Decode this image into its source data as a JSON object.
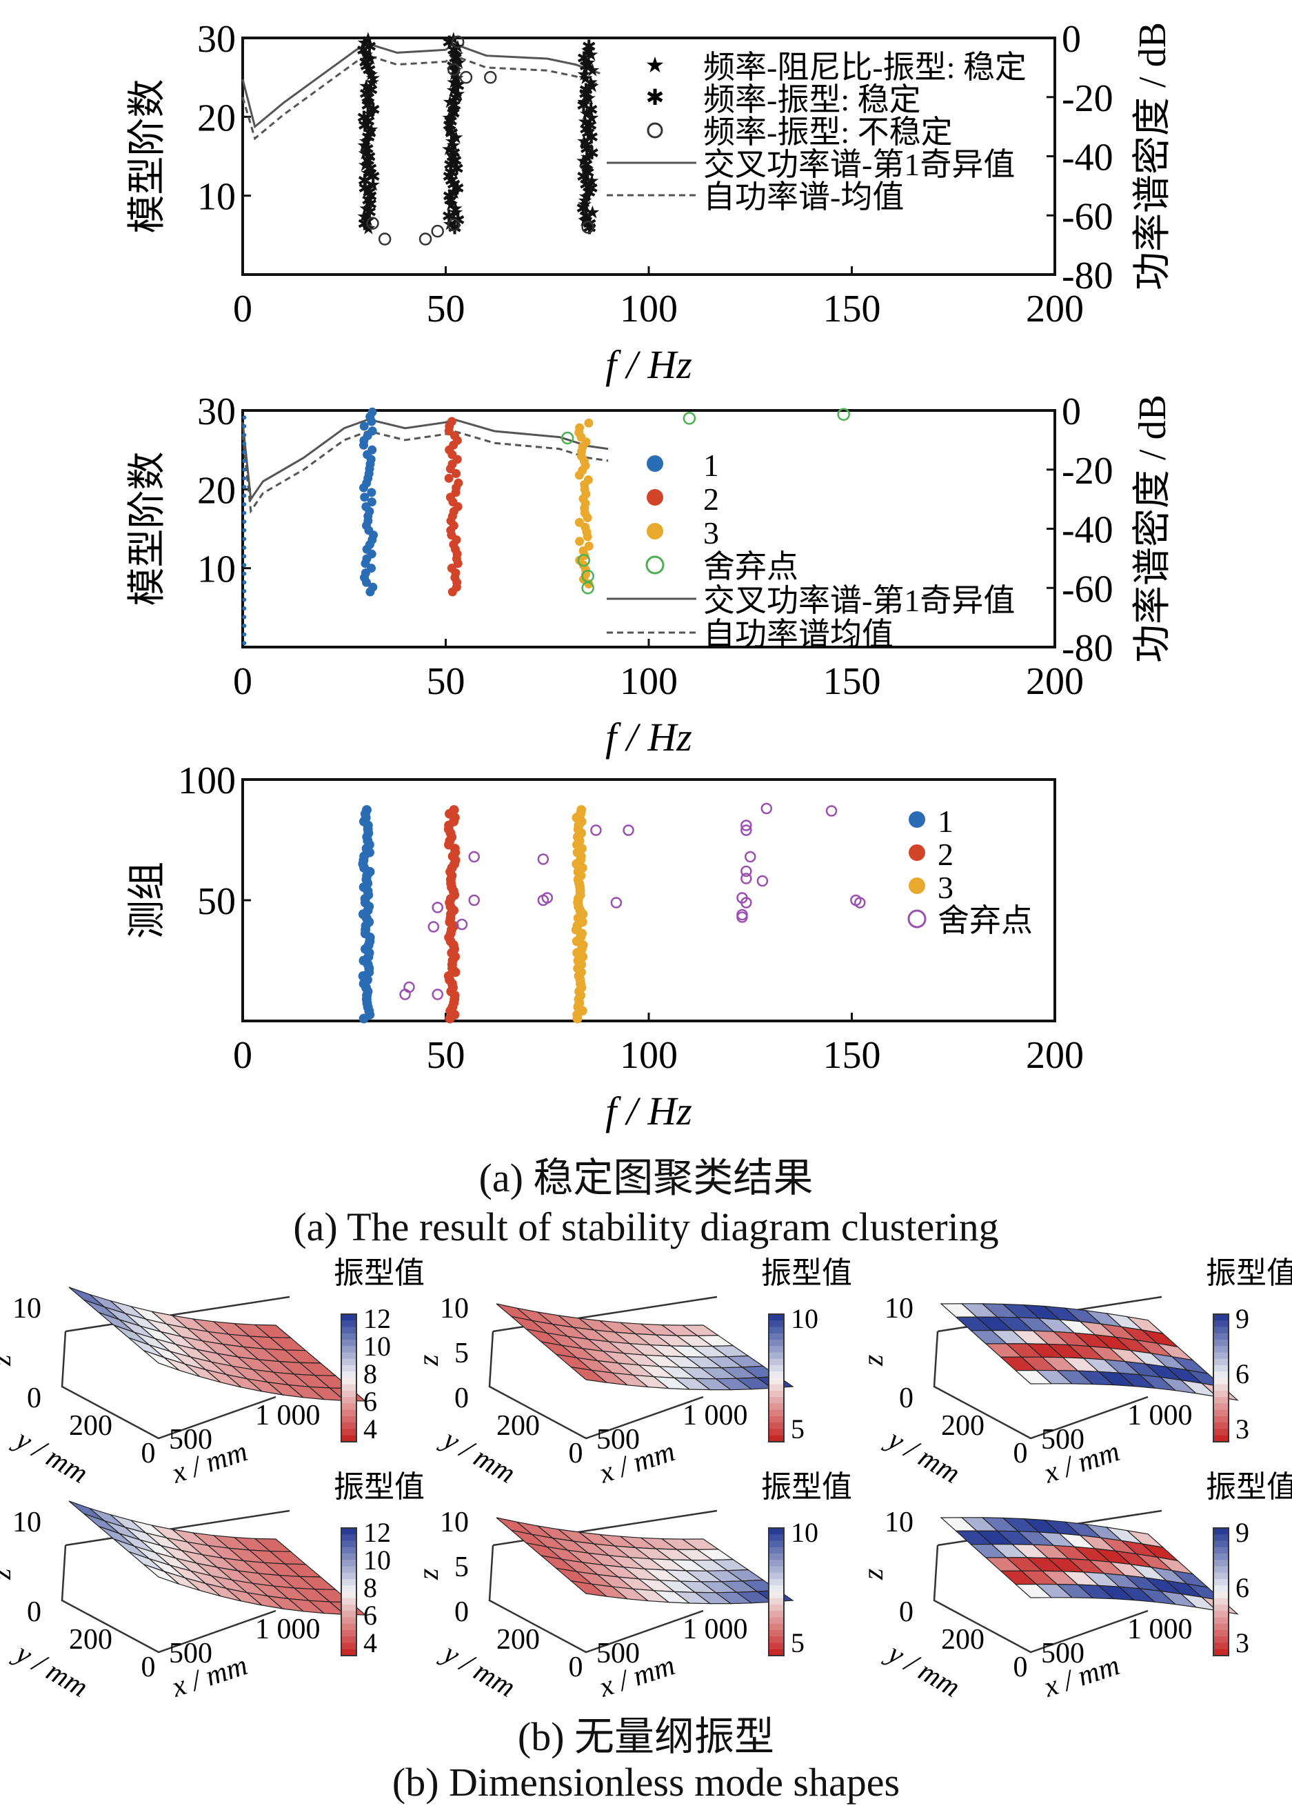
{
  "chart_data": [
    {
      "id": "stability",
      "type": "scatter",
      "xlabel": "f / Hz",
      "ylabel": "模型阶数",
      "y2label": "功率谱密度 / dB",
      "xlim": [
        0,
        200
      ],
      "ylim": [
        0,
        30
      ],
      "y2lim": [
        -80,
        0
      ],
      "xticks": [
        0,
        50,
        100,
        150,
        200
      ],
      "yticks": [
        10,
        20,
        30
      ],
      "y2ticks": [
        0,
        -20,
        -40,
        -60,
        -80
      ],
      "legend": [
        "频率-阻尼比-振型: 稳定",
        "频率-振型: 稳定",
        "频率-振型: 不稳定",
        "交叉功率谱-第1奇异值",
        "自功率谱-均值"
      ],
      "stable_columns": [
        {
          "f": 31,
          "order_range": [
            6,
            30
          ]
        },
        {
          "f": 52,
          "order_range": [
            6,
            30
          ]
        },
        {
          "f": 85,
          "order_range": [
            6,
            29
          ]
        }
      ],
      "unstable_points": [
        [
          32,
          6.5
        ],
        [
          35,
          4.5
        ],
        [
          45,
          4.5
        ],
        [
          48,
          5.5
        ],
        [
          52,
          6.3
        ],
        [
          53,
          29.5
        ],
        [
          55,
          25
        ],
        [
          61,
          25
        ],
        [
          52,
          26
        ],
        [
          85,
          6
        ]
      ],
      "csd_db": [
        [
          0,
          -14
        ],
        [
          3,
          -30
        ],
        [
          10,
          -22
        ],
        [
          20,
          -12
        ],
        [
          28,
          -4
        ],
        [
          31,
          -2
        ],
        [
          38,
          -5
        ],
        [
          50,
          -4
        ],
        [
          52,
          -2
        ],
        [
          60,
          -6
        ],
        [
          75,
          -7
        ],
        [
          82,
          -9
        ],
        [
          88,
          -12
        ]
      ],
      "asd_db": [
        [
          0,
          -20
        ],
        [
          3,
          -34
        ],
        [
          10,
          -26
        ],
        [
          20,
          -16
        ],
        [
          28,
          -8
        ],
        [
          31,
          -6
        ],
        [
          38,
          -9
        ],
        [
          50,
          -8
        ],
        [
          52,
          -6
        ],
        [
          60,
          -10
        ],
        [
          75,
          -11
        ],
        [
          82,
          -13
        ],
        [
          88,
          -16
        ]
      ]
    },
    {
      "id": "clustered",
      "type": "scatter",
      "xlabel": "f / Hz",
      "ylabel": "模型阶数",
      "y2label": "功率谱密度 / dB",
      "xlim": [
        0,
        200
      ],
      "ylim": [
        0,
        30
      ],
      "y2lim": [
        -80,
        0
      ],
      "xticks": [
        0,
        50,
        100,
        150,
        200
      ],
      "yticks": [
        10,
        20,
        30
      ],
      "y2ticks": [
        0,
        -20,
        -40,
        -60,
        -80
      ],
      "legend": [
        "1",
        "2",
        "3",
        "舍弃点",
        "交叉功率谱-第1奇异值",
        "自功率谱均值"
      ],
      "clusters": [
        {
          "name": "1",
          "f": 31,
          "order_range": [
            7,
            30
          ]
        },
        {
          "name": "2",
          "f": 52,
          "order_range": [
            7,
            29
          ]
        },
        {
          "name": "3",
          "f": 84,
          "order_range": [
            8,
            29
          ]
        }
      ],
      "discarded": [
        [
          80,
          26.5
        ],
        [
          84,
          11
        ],
        [
          85,
          9
        ],
        [
          85,
          7.5
        ],
        [
          110,
          29
        ],
        [
          148,
          29.5
        ]
      ],
      "csd_db": [
        [
          0,
          -4
        ],
        [
          2,
          -30
        ],
        [
          5,
          -24
        ],
        [
          15,
          -16
        ],
        [
          25,
          -6
        ],
        [
          31,
          -3
        ],
        [
          40,
          -6
        ],
        [
          50,
          -4
        ],
        [
          52,
          -3
        ],
        [
          62,
          -7
        ],
        [
          78,
          -9
        ],
        [
          85,
          -12
        ],
        [
          90,
          -13
        ]
      ],
      "asd_db": [
        [
          0,
          -8
        ],
        [
          2,
          -34
        ],
        [
          5,
          -28
        ],
        [
          15,
          -20
        ],
        [
          25,
          -10
        ],
        [
          31,
          -7
        ],
        [
          40,
          -10
        ],
        [
          50,
          -8
        ],
        [
          52,
          -7
        ],
        [
          62,
          -11
        ],
        [
          78,
          -13
        ],
        [
          85,
          -16
        ],
        [
          90,
          -17
        ]
      ]
    },
    {
      "id": "groups",
      "type": "scatter",
      "xlabel": "f / Hz",
      "ylabel": "测组",
      "xlim": [
        0,
        200
      ],
      "ylim": [
        0,
        100
      ],
      "xticks": [
        0,
        50,
        100,
        150,
        200
      ],
      "yticks": [
        50,
        100
      ],
      "legend": [
        "1",
        "2",
        "3",
        "舍弃点"
      ],
      "clusters": [
        {
          "name": "1",
          "f": 30.5,
          "group_range": [
            1,
            88
          ]
        },
        {
          "name": "2",
          "f": 51.5,
          "group_range": [
            1,
            88
          ]
        },
        {
          "name": "3",
          "f": 83,
          "group_range": [
            1,
            88
          ]
        }
      ],
      "discarded": [
        [
          40,
          11
        ],
        [
          41,
          14
        ],
        [
          48,
          11
        ],
        [
          47,
          39
        ],
        [
          48,
          47
        ],
        [
          54,
          40
        ],
        [
          57,
          68
        ],
        [
          57,
          50
        ],
        [
          74,
          67
        ],
        [
          74,
          50
        ],
        [
          75,
          51
        ],
        [
          87,
          79
        ],
        [
          92,
          49
        ],
        [
          95,
          79
        ],
        [
          124,
          81
        ],
        [
          124,
          79
        ],
        [
          125,
          68
        ],
        [
          124,
          62
        ],
        [
          124,
          59
        ],
        [
          128,
          58
        ],
        [
          123,
          51
        ],
        [
          124,
          49
        ],
        [
          123,
          44
        ],
        [
          123,
          43
        ],
        [
          129,
          88
        ],
        [
          145,
          87
        ],
        [
          151,
          50
        ],
        [
          152,
          49
        ]
      ]
    },
    {
      "id": "mode_shapes",
      "type": "surface",
      "xlabel": "x / mm",
      "ylabel": "y / mm",
      "zlabel": "z",
      "colorbar_label": "振型值",
      "xticks": [
        "500",
        "1 000"
      ],
      "yticks": [
        "0",
        "200"
      ],
      "zticks": [
        "0",
        "10"
      ],
      "zticks_5": [
        "0",
        "5",
        "10"
      ],
      "panels": [
        {
          "row": 1,
          "col": 1,
          "cbar": [
            "12",
            "10",
            "8",
            "6",
            "4"
          ],
          "shape": "bend"
        },
        {
          "row": 1,
          "col": 2,
          "cbar": [
            "10",
            "5"
          ],
          "shape": "bend_twist"
        },
        {
          "row": 1,
          "col": 3,
          "cbar": [
            "9",
            "6",
            "3"
          ],
          "shape": "wave"
        },
        {
          "row": 2,
          "col": 1,
          "cbar": [
            "12",
            "10",
            "8",
            "6",
            "4"
          ],
          "shape": "bend"
        },
        {
          "row": 2,
          "col": 2,
          "cbar": [
            "10",
            "5"
          ],
          "shape": "bend_twist"
        },
        {
          "row": 2,
          "col": 3,
          "cbar": [
            "9",
            "6",
            "3"
          ],
          "shape": "wave"
        }
      ]
    }
  ],
  "captions": {
    "a_cn": "(a)  稳定图聚类结果",
    "a_en": "(a)  The result of stability diagram clustering",
    "b_cn": "(b)  无量纲振型",
    "b_en": "(b)  Dimensionless mode shapes"
  },
  "colors": {
    "c1": "#2a6db5",
    "c2": "#d2452a",
    "c3": "#e8a92d",
    "discard_2": "#4caf50",
    "discard_3": "#9b4fb0",
    "line": "#555555"
  }
}
